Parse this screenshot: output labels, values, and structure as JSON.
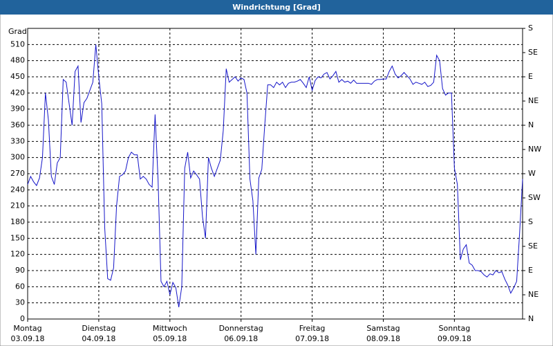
{
  "chart_data": {
    "type": "line",
    "title": "Windrichtung [Grad]",
    "y_label": "Grad",
    "x": [
      0,
      1,
      2,
      3,
      4,
      5,
      6,
      7,
      8,
      9,
      10,
      11,
      12,
      13,
      14,
      15,
      16,
      17,
      18,
      19,
      20,
      21,
      22,
      23,
      24,
      25,
      26,
      27,
      28,
      29,
      30,
      31,
      32,
      33,
      34,
      35,
      36,
      37,
      38,
      39,
      40,
      41,
      42,
      43,
      44,
      45,
      46,
      47,
      48,
      49,
      50,
      51,
      52,
      53,
      54,
      55,
      56,
      57,
      58,
      59,
      60,
      61,
      62,
      63,
      64,
      65,
      66,
      67,
      68,
      69,
      70,
      71,
      72,
      73,
      74,
      75,
      76,
      77,
      78,
      79,
      80,
      81,
      82,
      83,
      84,
      85,
      86,
      87,
      88,
      89,
      90,
      91,
      92,
      93,
      94,
      95,
      96,
      97,
      98,
      99,
      100,
      101,
      102,
      103,
      104,
      105,
      106,
      107,
      108,
      109,
      110,
      111,
      112,
      113,
      114,
      115,
      116,
      117,
      118,
      119,
      120,
      121,
      122,
      123,
      124,
      125,
      126,
      127,
      128,
      129,
      130,
      131,
      132,
      133,
      134,
      135,
      136,
      137,
      138,
      139,
      140,
      141,
      142,
      143,
      144,
      145,
      146,
      147,
      148,
      149,
      150,
      151,
      152,
      153,
      154,
      155,
      156,
      157,
      158,
      159,
      160,
      161,
      162,
      163,
      164,
      165,
      166,
      167
    ],
    "series": [
      {
        "name": "Windrichtung",
        "color": "#1414c8",
        "values": [
          250,
          265,
          255,
          248,
          262,
          300,
          420,
          370,
          265,
          250,
          290,
          300,
          445,
          440,
          400,
          360,
          460,
          470,
          365,
          402,
          410,
          425,
          440,
          510,
          450,
          400,
          170,
          75,
          72,
          95,
          210,
          265,
          268,
          275,
          300,
          310,
          305,
          305,
          260,
          265,
          260,
          250,
          245,
          380,
          260,
          70,
          60,
          70,
          45,
          68,
          58,
          22,
          60,
          280,
          310,
          262,
          275,
          268,
          260,
          190,
          150,
          300,
          280,
          265,
          280,
          295,
          350,
          465,
          440,
          445,
          450,
          442,
          448,
          445,
          420,
          260,
          220,
          120,
          262,
          278,
          360,
          435,
          435,
          430,
          440,
          435,
          440,
          430,
          438,
          440,
          440,
          442,
          445,
          438,
          430,
          450,
          425,
          443,
          450,
          448,
          455,
          458,
          446,
          452,
          460,
          440,
          445,
          440,
          442,
          438,
          444,
          438,
          438,
          438,
          438,
          438,
          436,
          442,
          445,
          445,
          446,
          446,
          460,
          470,
          455,
          448,
          452,
          458,
          452,
          446,
          436,
          440,
          438,
          436,
          440,
          432,
          434,
          440,
          490,
          480,
          428,
          416,
          420,
          420,
          280,
          250,
          110,
          130,
          138,
          104,
          100,
          90,
          90,
          88,
          82,
          78,
          84,
          82,
          90,
          86,
          88,
          74,
          63,
          48,
          58,
          70,
          160,
          260
        ]
      }
    ],
    "xlim": [
      0,
      167
    ],
    "xticks": [
      {
        "value": 0,
        "label": "Montag",
        "date": "03.09.18"
      },
      {
        "value": 24,
        "label": "Dienstag",
        "date": "04.09.18"
      },
      {
        "value": 48,
        "label": "Mittwoch",
        "date": "05.09.18"
      },
      {
        "value": 72,
        "label": "Donnerstag",
        "date": "06.09.18"
      },
      {
        "value": 96,
        "label": "Freitag",
        "date": "07.09.18"
      },
      {
        "value": 120,
        "label": "Samstag",
        "date": "08.09.18"
      },
      {
        "value": 144,
        "label": "Sonntag",
        "date": "09.09.18"
      }
    ],
    "ylim": [
      0,
      540
    ],
    "yticks": [
      0,
      30,
      60,
      90,
      120,
      150,
      180,
      210,
      240,
      270,
      300,
      330,
      360,
      390,
      420,
      450,
      480,
      510
    ],
    "y2lim": [
      0,
      540
    ],
    "y2ticks": [
      {
        "value": 0,
        "label": "N"
      },
      {
        "value": 45,
        "label": "NE"
      },
      {
        "value": 90,
        "label": "E"
      },
      {
        "value": 135,
        "label": "SE"
      },
      {
        "value": 180,
        "label": "S"
      },
      {
        "value": 225,
        "label": "SW"
      },
      {
        "value": 270,
        "label": "W"
      },
      {
        "value": 315,
        "label": "NW"
      },
      {
        "value": 360,
        "label": "N"
      },
      {
        "value": 405,
        "label": "NE"
      },
      {
        "value": 450,
        "label": "E"
      },
      {
        "value": 495,
        "label": "SE"
      },
      {
        "value": 540,
        "label": "S"
      }
    ],
    "grid": true
  }
}
